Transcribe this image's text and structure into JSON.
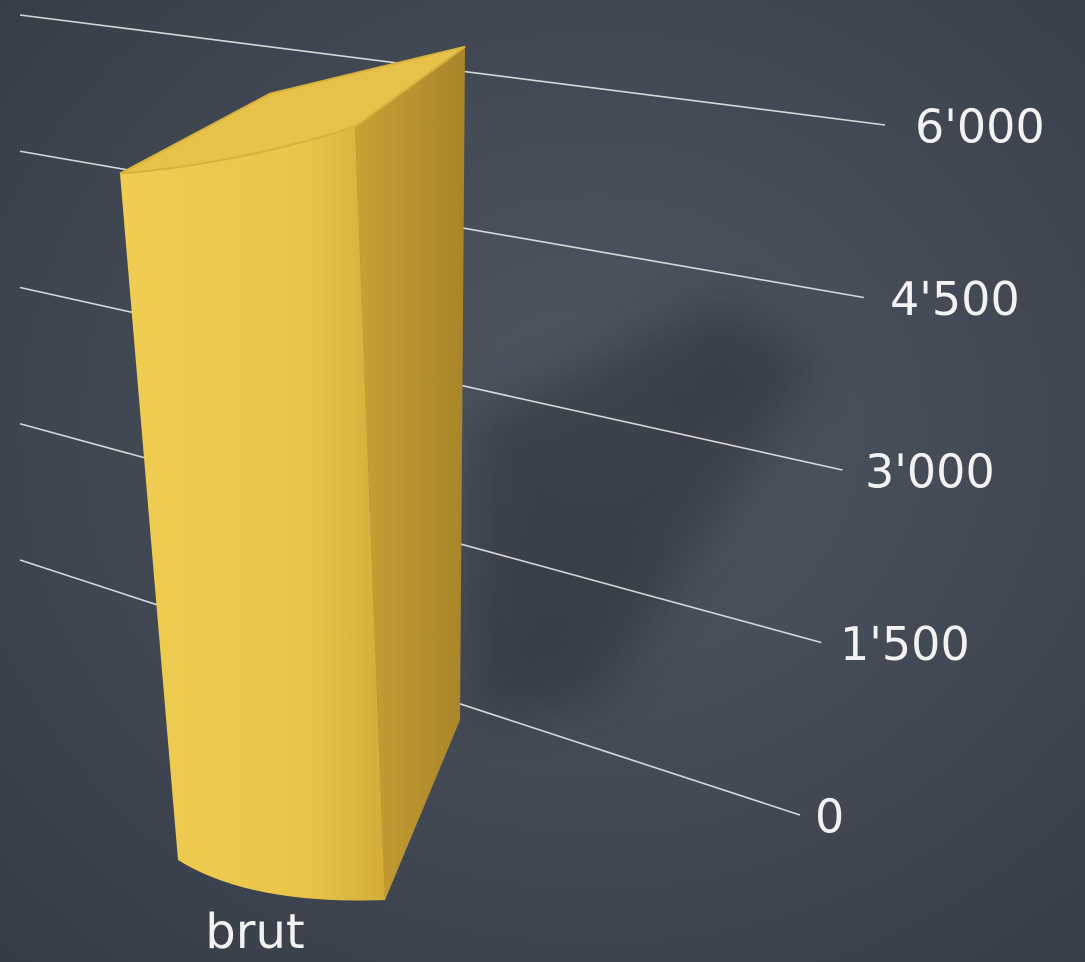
{
  "chart_data": {
    "type": "bar3d",
    "categories": [
      "brut"
    ],
    "values": [
      5800
    ],
    "color": "#e2bd45",
    "ylim": [
      0,
      6000
    ],
    "yticks": [
      0,
      {
        "value": 1500,
        "label": "1'500"
      },
      {
        "value": 3000,
        "label": "3'000"
      },
      {
        "value": 4500,
        "label": "4'500"
      },
      {
        "value": 6000,
        "label": "6'000"
      }
    ],
    "grid": true
  }
}
